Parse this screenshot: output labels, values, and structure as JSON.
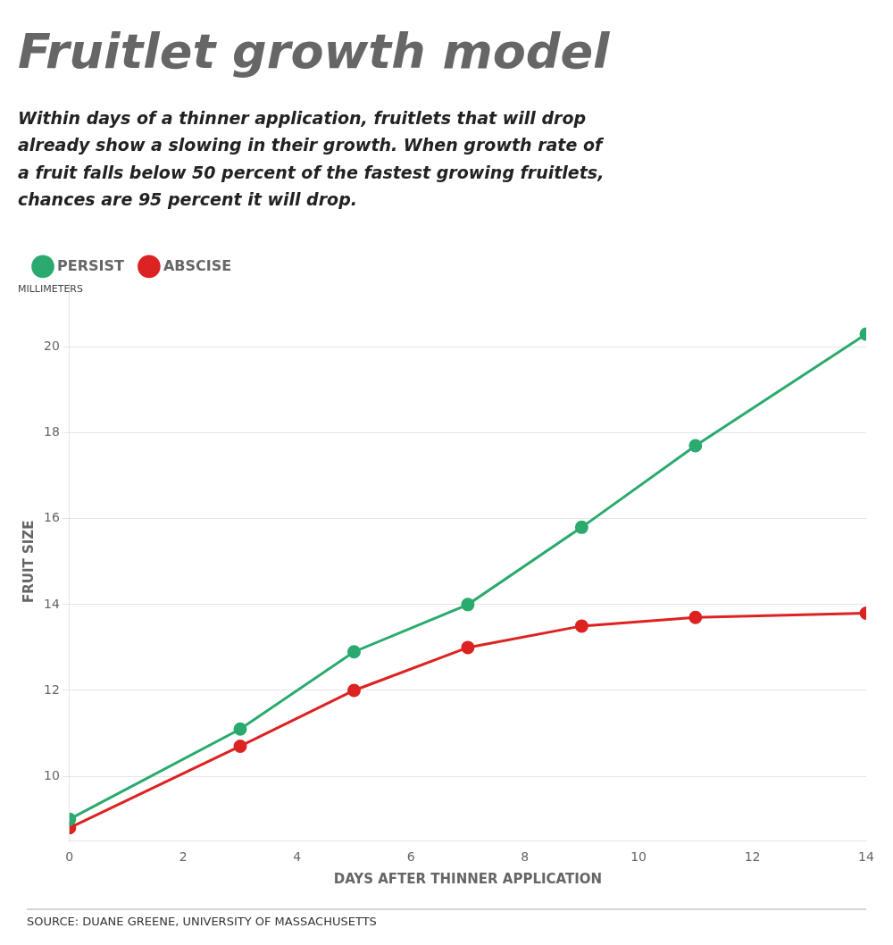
{
  "chart_data": {
    "type": "line",
    "title": "Fruitlet growth model",
    "subtitle": [
      "Within days of a thinner application, fruitlets that will drop",
      "already show a slowing in their growth. When growth rate of",
      "a fruit falls below 50 percent of the fastest growing fruitlets,",
      "chances are 95 percent it will drop."
    ],
    "xlabel": "DAYS AFTER THINNER APPLICATION",
    "ylabel": "FRUIT SIZE",
    "annotations": [
      "MILLIMETERS",
      "SOURCE: DUANE GREENE, UNIVERSITY OF MASSACHUSETTS"
    ],
    "x": [
      0,
      3,
      5,
      7,
      9,
      11,
      14
    ],
    "series": [
      {
        "name": "PERSIST",
        "color": "#2aaa6e",
        "marker": "circle",
        "values": [
          9.0,
          11.1,
          12.9,
          14.0,
          15.8,
          17.7,
          20.3
        ]
      },
      {
        "name": "ABSCISE",
        "color": "#dd2222",
        "marker": "circle",
        "values": [
          8.8,
          10.7,
          12.0,
          13.0,
          13.5,
          13.7,
          13.8
        ]
      }
    ],
    "xlim": [
      0,
      14
    ],
    "xticks": [
      0,
      2,
      4,
      6,
      8,
      10,
      12,
      14
    ],
    "ylim": [
      8.5,
      21.5
    ],
    "yticks": [
      10,
      12,
      14,
      16,
      18,
      20
    ],
    "grid": "y",
    "legend": "upper left"
  }
}
